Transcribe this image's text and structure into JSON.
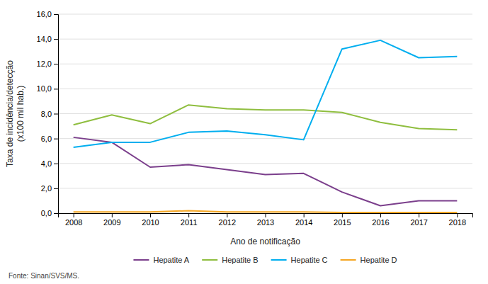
{
  "chart_data": {
    "type": "line",
    "xlabel": "Ano de notificação",
    "ylabel": "Taxa de incidência/detecção\n(x100 mil hab.)",
    "annotations": [
      "Fonte: Sinan/SVS/MS."
    ],
    "x": [
      2008,
      2009,
      2010,
      2011,
      2012,
      2013,
      2014,
      2015,
      2016,
      2017,
      2018
    ],
    "series": [
      {
        "name": "Hepatite A",
        "color": "#7b3f8c",
        "values": [
          6.1,
          5.7,
          3.7,
          3.9,
          3.5,
          3.1,
          3.2,
          1.7,
          0.6,
          1.0,
          1.0
        ]
      },
      {
        "name": "Hepatite B",
        "color": "#8fbe3f",
        "values": [
          7.1,
          7.9,
          7.2,
          8.7,
          8.4,
          8.3,
          8.3,
          8.1,
          7.3,
          6.8,
          6.7
        ]
      },
      {
        "name": "Hepatite C",
        "color": "#00aeef",
        "values": [
          5.3,
          5.7,
          5.7,
          6.5,
          6.6,
          6.3,
          5.9,
          13.2,
          13.9,
          12.5,
          12.6
        ]
      },
      {
        "name": "Hepatite D",
        "color": "#f5a623",
        "values": [
          0.1,
          0.1,
          0.1,
          0.2,
          0.1,
          0.1,
          0.1,
          0.05,
          0.05,
          0.05,
          0.05
        ]
      }
    ],
    "xlim": [
      2007.6,
      2018.4
    ],
    "xticks": [
      2008,
      2009,
      2010,
      2011,
      2012,
      2013,
      2014,
      2015,
      2016,
      2017,
      2018
    ],
    "ylim": [
      0,
      16.0
    ],
    "yticks": [
      {
        "value": 0.0,
        "label": "0,0"
      },
      {
        "value": 2.0,
        "label": "2,0"
      },
      {
        "value": 4.0,
        "label": "4,0"
      },
      {
        "value": 6.0,
        "label": "6,0"
      },
      {
        "value": 8.0,
        "label": "8,0"
      },
      {
        "value": 10.0,
        "label": "10,0"
      },
      {
        "value": 12.0,
        "label": "12,0"
      },
      {
        "value": 14.0,
        "label": "14,0"
      },
      {
        "value": 16.0,
        "label": "16,0"
      }
    ],
    "grid": "y",
    "legend": "bottom"
  }
}
